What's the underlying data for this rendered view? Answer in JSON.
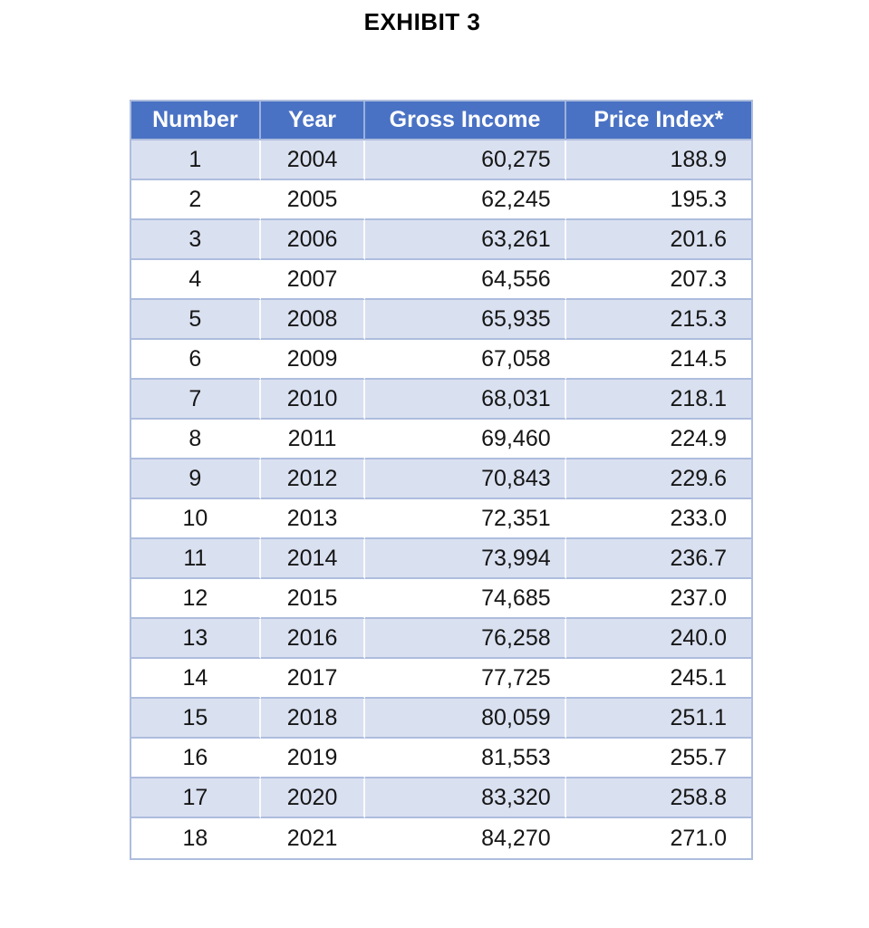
{
  "page": {
    "title": "EXHIBIT 3"
  },
  "table": {
    "columns": [
      "Number",
      "Year",
      "Gross Income",
      "Price Index*"
    ],
    "rows": [
      [
        "1",
        "2004",
        "60,275",
        "188.9"
      ],
      [
        "2",
        "2005",
        "62,245",
        "195.3"
      ],
      [
        "3",
        "2006",
        "63,261",
        "201.6"
      ],
      [
        "4",
        "2007",
        "64,556",
        "207.3"
      ],
      [
        "5",
        "2008",
        "65,935",
        "215.3"
      ],
      [
        "6",
        "2009",
        "67,058",
        "214.5"
      ],
      [
        "7",
        "2010",
        "68,031",
        "218.1"
      ],
      [
        "8",
        "2011",
        "69,460",
        "224.9"
      ],
      [
        "9",
        "2012",
        "70,843",
        "229.6"
      ],
      [
        "10",
        "2013",
        "72,351",
        "233.0"
      ],
      [
        "11",
        "2014",
        "73,994",
        "236.7"
      ],
      [
        "12",
        "2015",
        "74,685",
        "237.0"
      ],
      [
        "13",
        "2016",
        "76,258",
        "240.0"
      ],
      [
        "14",
        "2017",
        "77,725",
        "245.1"
      ],
      [
        "15",
        "2018",
        "80,059",
        "251.1"
      ],
      [
        "16",
        "2019",
        "81,553",
        "255.7"
      ],
      [
        "17",
        "2020",
        "83,320",
        "258.8"
      ],
      [
        "18",
        "2021",
        "84,270",
        "271.0"
      ]
    ]
  },
  "colors": {
    "header_bg": "#4A72C4",
    "header_text": "#FFFFFF",
    "band_row_bg": "#D9E0F0",
    "white_row_bg": "#FFFFFF",
    "grid_line": "#AEBDDE",
    "body_text": "#161616",
    "title_text": "#000000"
  },
  "chart_data": {
    "type": "table",
    "title": "EXHIBIT 3",
    "columns": [
      "Number",
      "Year",
      "Gross Income",
      "Price Index*"
    ],
    "rows": [
      [
        1,
        2004,
        60275,
        188.9
      ],
      [
        2,
        2005,
        62245,
        195.3
      ],
      [
        3,
        2006,
        63261,
        201.6
      ],
      [
        4,
        2007,
        64556,
        207.3
      ],
      [
        5,
        2008,
        65935,
        215.3
      ],
      [
        6,
        2009,
        67058,
        214.5
      ],
      [
        7,
        2010,
        68031,
        218.1
      ],
      [
        8,
        2011,
        69460,
        224.9
      ],
      [
        9,
        2012,
        70843,
        229.6
      ],
      [
        10,
        2013,
        72351,
        233.0
      ],
      [
        11,
        2014,
        73994,
        236.7
      ],
      [
        12,
        2015,
        74685,
        237.0
      ],
      [
        13,
        2016,
        76258,
        240.0
      ],
      [
        14,
        2017,
        77725,
        245.1
      ],
      [
        15,
        2018,
        80059,
        251.1
      ],
      [
        16,
        2019,
        81553,
        255.7
      ],
      [
        17,
        2020,
        83320,
        258.8
      ],
      [
        18,
        2021,
        84270,
        271.0
      ]
    ],
    "layout": {
      "header_style": "solid blue banner, white bold text",
      "row_banding": "odd data rows shaded light blue, even rows white",
      "alignment": [
        "center",
        "center",
        "right",
        "right"
      ]
    }
  }
}
